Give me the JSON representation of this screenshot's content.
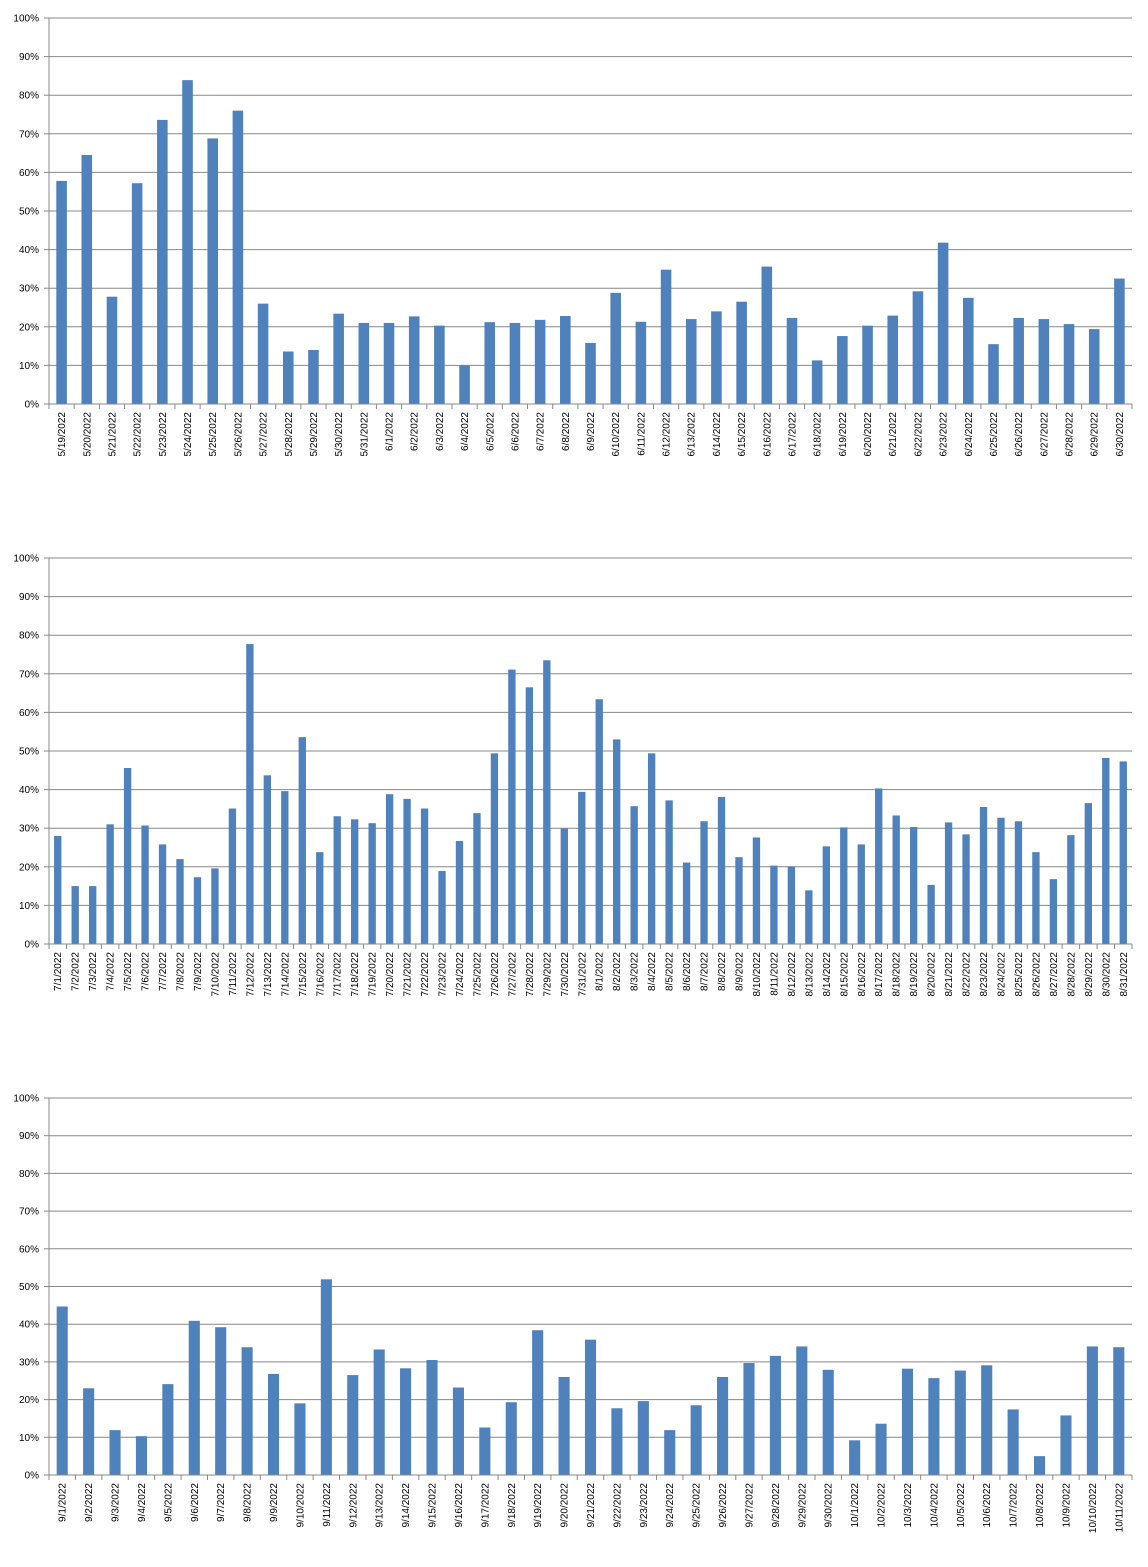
{
  "colors": {
    "bar": "#4F81BD",
    "grid": "#888888",
    "axis": "#888888",
    "text": "#000000"
  },
  "chart_data": [
    {
      "type": "bar",
      "title": "",
      "xlabel": "",
      "ylabel": "",
      "ylim": [
        0,
        100
      ],
      "y_ticks": [
        "0%",
        "10%",
        "20%",
        "30%",
        "40%",
        "50%",
        "60%",
        "70%",
        "80%",
        "90%",
        "100%"
      ],
      "grid": true,
      "legend": "none",
      "categories": [
        "5/19/2022",
        "5/20/2022",
        "5/21/2022",
        "5/22/2022",
        "5/23/2022",
        "5/24/2022",
        "5/25/2022",
        "5/26/2022",
        "5/27/2022",
        "5/28/2022",
        "5/29/2022",
        "5/30/2022",
        "5/31/2022",
        "6/1/2022",
        "6/2/2022",
        "6/3/2022",
        "6/4/2022",
        "6/5/2022",
        "6/6/2022",
        "6/7/2022",
        "6/8/2022",
        "6/9/2022",
        "6/10/2022",
        "6/11/2022",
        "6/12/2022",
        "6/13/2022",
        "6/14/2022",
        "6/15/2022",
        "6/16/2022",
        "6/17/2022",
        "6/18/2022",
        "6/19/2022",
        "6/20/2022",
        "6/21/2022",
        "6/22/2022",
        "6/23/2022",
        "6/24/2022",
        "6/25/2022",
        "6/26/2022",
        "6/27/2022",
        "6/28/2022",
        "6/29/2022",
        "6/30/2022"
      ],
      "values": [
        57.8,
        64.5,
        27.8,
        57.2,
        73.6,
        83.9,
        68.8,
        76,
        26,
        13.6,
        14,
        23.4,
        21,
        21,
        22.7,
        20.3,
        10,
        21.2,
        21,
        21.8,
        22.8,
        15.8,
        28.8,
        21.3,
        34.8,
        22,
        24,
        26.5,
        35.6,
        22.3,
        11.3,
        17.6,
        20.3,
        22.9,
        29.2,
        41.8,
        27.5,
        15.5,
        22.3,
        22,
        20.7,
        19.4,
        32.5
      ]
    },
    {
      "type": "bar",
      "title": "",
      "xlabel": "",
      "ylabel": "",
      "ylim": [
        0,
        100
      ],
      "y_ticks": [
        "0%",
        "10%",
        "20%",
        "30%",
        "40%",
        "50%",
        "60%",
        "70%",
        "80%",
        "90%",
        "100%"
      ],
      "grid": true,
      "legend": "none",
      "categories": [
        "7/1/2022",
        "7/2/2022",
        "7/3/2022",
        "7/4/2022",
        "7/5/2022",
        "7/6/2022",
        "7/7/2022",
        "7/8/2022",
        "7/9/2022",
        "7/10/2022",
        "7/11/2022",
        "7/12/2022",
        "7/13/2022",
        "7/14/2022",
        "7/15/2022",
        "7/16/2022",
        "7/17/2022",
        "7/18/2022",
        "7/19/2022",
        "7/20/2022",
        "7/21/2022",
        "7/22/2022",
        "7/23/2022",
        "7/24/2022",
        "7/25/2022",
        "7/26/2022",
        "7/27/2022",
        "7/28/2022",
        "7/29/2022",
        "7/30/2022",
        "7/31/2022",
        "8/1/2022",
        "8/2/2022",
        "8/3/2022",
        "8/4/2022",
        "8/5/2022",
        "8/6/2022",
        "8/7/2022",
        "8/8/2022",
        "8/9/2022",
        "8/10/2022",
        "8/11/2022",
        "8/12/2022",
        "8/13/2022",
        "8/14/2022",
        "8/15/2022",
        "8/16/2022",
        "8/17/2022",
        "8/18/2022",
        "8/19/2022",
        "8/20/2022",
        "8/21/2022",
        "8/22/2022",
        "8/23/2022",
        "8/24/2022",
        "8/25/2022",
        "8/26/2022",
        "8/27/2022",
        "8/28/2022",
        "8/29/2022",
        "8/30/2022",
        "8/31/2022"
      ],
      "values": [
        28,
        15,
        15,
        31,
        45.6,
        30.7,
        25.8,
        22,
        17.3,
        19.6,
        35.1,
        77.7,
        43.7,
        39.6,
        53.6,
        23.8,
        33.1,
        32.3,
        31.3,
        38.8,
        37.6,
        35.1,
        18.9,
        26.7,
        33.9,
        49.4,
        71.1,
        66.5,
        73.5,
        29.9,
        39.4,
        63.4,
        53,
        35.7,
        49.4,
        37.2,
        21.1,
        31.8,
        38.1,
        22.5,
        27.6,
        20.3,
        20.1,
        13.9,
        25.3,
        30.2,
        25.8,
        40.3,
        33.3,
        30.3,
        15.3,
        31.5,
        28.4,
        35.5,
        32.7,
        31.8,
        23.8,
        16.8,
        28.2,
        36.5,
        48.2,
        47.3
      ]
    },
    {
      "type": "bar",
      "title": "",
      "xlabel": "",
      "ylabel": "",
      "ylim": [
        0,
        100
      ],
      "y_ticks": [
        "0%",
        "10%",
        "20%",
        "30%",
        "40%",
        "50%",
        "60%",
        "70%",
        "80%",
        "90%",
        "100%"
      ],
      "grid": true,
      "legend": "none",
      "categories": [
        "9/1/2022",
        "9/2/2022",
        "9/3/2022",
        "9/4/2022",
        "9/5/2022",
        "9/6/2022",
        "9/7/2022",
        "9/8/2022",
        "9/9/2022",
        "9/10/2022",
        "9/11/2022",
        "9/12/2022",
        "9/13/2022",
        "9/14/2022",
        "9/15/2022",
        "9/16/2022",
        "9/17/2022",
        "9/18/2022",
        "9/19/2022",
        "9/20/2022",
        "9/21/2022",
        "9/22/2022",
        "9/23/2022",
        "9/24/2022",
        "9/25/2022",
        "9/26/2022",
        "9/27/2022",
        "9/28/2022",
        "9/29/2022",
        "9/30/2022",
        "10/1/2022",
        "10/2/2022",
        "10/3/2022",
        "10/4/2022",
        "10/5/2022",
        "10/6/2022",
        "10/7/2022",
        "10/8/2022",
        "10/9/2022",
        "10/10/2022",
        "10/11/2022"
      ],
      "values": [
        44.7,
        23,
        11.9,
        10.3,
        24.1,
        40.9,
        39.2,
        33.9,
        26.8,
        19,
        51.9,
        26.5,
        33.3,
        28.3,
        30.5,
        23.2,
        12.6,
        19.3,
        38.4,
        26,
        35.9,
        17.7,
        19.6,
        11.9,
        18.5,
        26,
        29.7,
        31.6,
        34.1,
        27.9,
        9.2,
        13.6,
        28.2,
        25.7,
        27.7,
        29.1,
        17.4,
        5,
        15.8,
        34.1,
        33.9
      ]
    }
  ]
}
